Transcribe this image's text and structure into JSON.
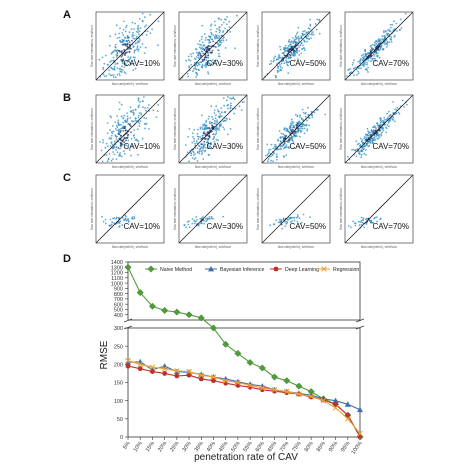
{
  "panels": [
    {
      "letter": "A",
      "spread": "large",
      "tiles": [
        {
          "label": "CAV=10%",
          "xlabel": "flow rate(veh/h), veh/hour",
          "ylabel": "flow rate estimation, veh/hour"
        },
        {
          "label": "CAV=30%",
          "xlabel": "flow rate(veh/h), veh/hour",
          "ylabel": "flow rate estimation, veh/hour"
        },
        {
          "label": "CAV=50%",
          "xlabel": "flow rate(veh/h), veh/hour",
          "ylabel": "flow rate estimation, veh/hour"
        },
        {
          "label": "CAV=70%",
          "xlabel": "flow rate(veh/h), veh/hour",
          "ylabel": "flow rate estimation, veh/hour"
        }
      ]
    },
    {
      "letter": "B",
      "spread": "large",
      "tiles": [
        {
          "label": "CAV=10%",
          "xlabel": "flow rate(veh/h), veh/hour",
          "ylabel": "flow rate estimation, veh/hour"
        },
        {
          "label": "CAV=30%",
          "xlabel": "flow rate(veh/h), veh/hour",
          "ylabel": "flow rate estimation, veh/hour"
        },
        {
          "label": "CAV=50%",
          "xlabel": "flow rate(veh/h), veh/hour",
          "ylabel": "flow rate estimation, veh/hour"
        },
        {
          "label": "CAV=70%",
          "xlabel": "flow rate(veh/h), veh/hour",
          "ylabel": "flow rate estimation, veh/hour"
        }
      ]
    },
    {
      "letter": "C",
      "spread": "small",
      "tiles": [
        {
          "label": "CAV=10%",
          "xlabel": "flow rate(veh/h), veh/hour",
          "ylabel": "flow rate estimation, veh/hour"
        },
        {
          "label": "CAV=30%",
          "xlabel": "flow rate(veh/h), veh/hour",
          "ylabel": "flow rate estimation, veh/hour"
        },
        {
          "label": "CAV=50%",
          "xlabel": "flow rate(veh/h), veh/hour",
          "ylabel": "flow rate estimation, veh/hour"
        },
        {
          "label": "CAV=70%",
          "xlabel": "flow rate(veh/h), veh/hour",
          "ylabel": "flow rate estimation, veh/hour"
        }
      ]
    }
  ],
  "colors": {
    "scatter": "#2f8fc4",
    "scatter_dense": "#1b3f7a",
    "diagonal": "#222222",
    "naive": "#4f9d3a",
    "bayesian": "#3d6fae",
    "deep": "#c0302b",
    "regression": "#e8a33a",
    "axis": "#333333"
  },
  "chart_data": {
    "letter": "D",
    "type": "line",
    "xlabel": "penetration rate of CAV",
    "ylabel": "RMSE",
    "categories": [
      "5%",
      "10%",
      "15%",
      "20%",
      "25%",
      "30%",
      "35%",
      "40%",
      "45%",
      "50%",
      "55%",
      "60%",
      "65%",
      "70%",
      "75%",
      "80%",
      "85%",
      "90%",
      "95%",
      "100%"
    ],
    "y_axis_break": {
      "lower": [
        0,
        300
      ],
      "upper": [
        300,
        1400
      ]
    },
    "lower_ticks": [
      0,
      50,
      100,
      150,
      200,
      250,
      300
    ],
    "upper_ticks": [
      400,
      500,
      600,
      700,
      800,
      900,
      1000,
      1100,
      1200,
      1300,
      1400
    ],
    "legend_position": "top",
    "series": [
      {
        "name": "Naive Method",
        "marker": "diamond",
        "color_key": "naive",
        "values": [
          1300,
          820,
          560,
          480,
          450,
          400,
          340,
          300,
          255,
          230,
          205,
          190,
          165,
          155,
          140,
          125,
          105,
          90,
          60,
          0
        ]
      },
      {
        "name": "Bayesian Inference",
        "marker": "triangle",
        "color_key": "bayesian",
        "values": [
          205,
          207,
          185,
          195,
          180,
          178,
          172,
          165,
          160,
          152,
          145,
          140,
          130,
          125,
          120,
          115,
          105,
          100,
          90,
          75
        ]
      },
      {
        "name": "Deep Learning",
        "marker": "circle",
        "color_key": "deep",
        "values": [
          195,
          188,
          180,
          175,
          168,
          170,
          160,
          155,
          148,
          142,
          137,
          130,
          126,
          122,
          118,
          110,
          102,
          90,
          60,
          2
        ]
      },
      {
        "name": "Regression",
        "marker": "x",
        "color_key": "regression",
        "values": [
          210,
          200,
          192,
          188,
          182,
          180,
          170,
          165,
          155,
          150,
          142,
          135,
          130,
          125,
          118,
          112,
          100,
          80,
          50,
          10
        ]
      }
    ]
  }
}
